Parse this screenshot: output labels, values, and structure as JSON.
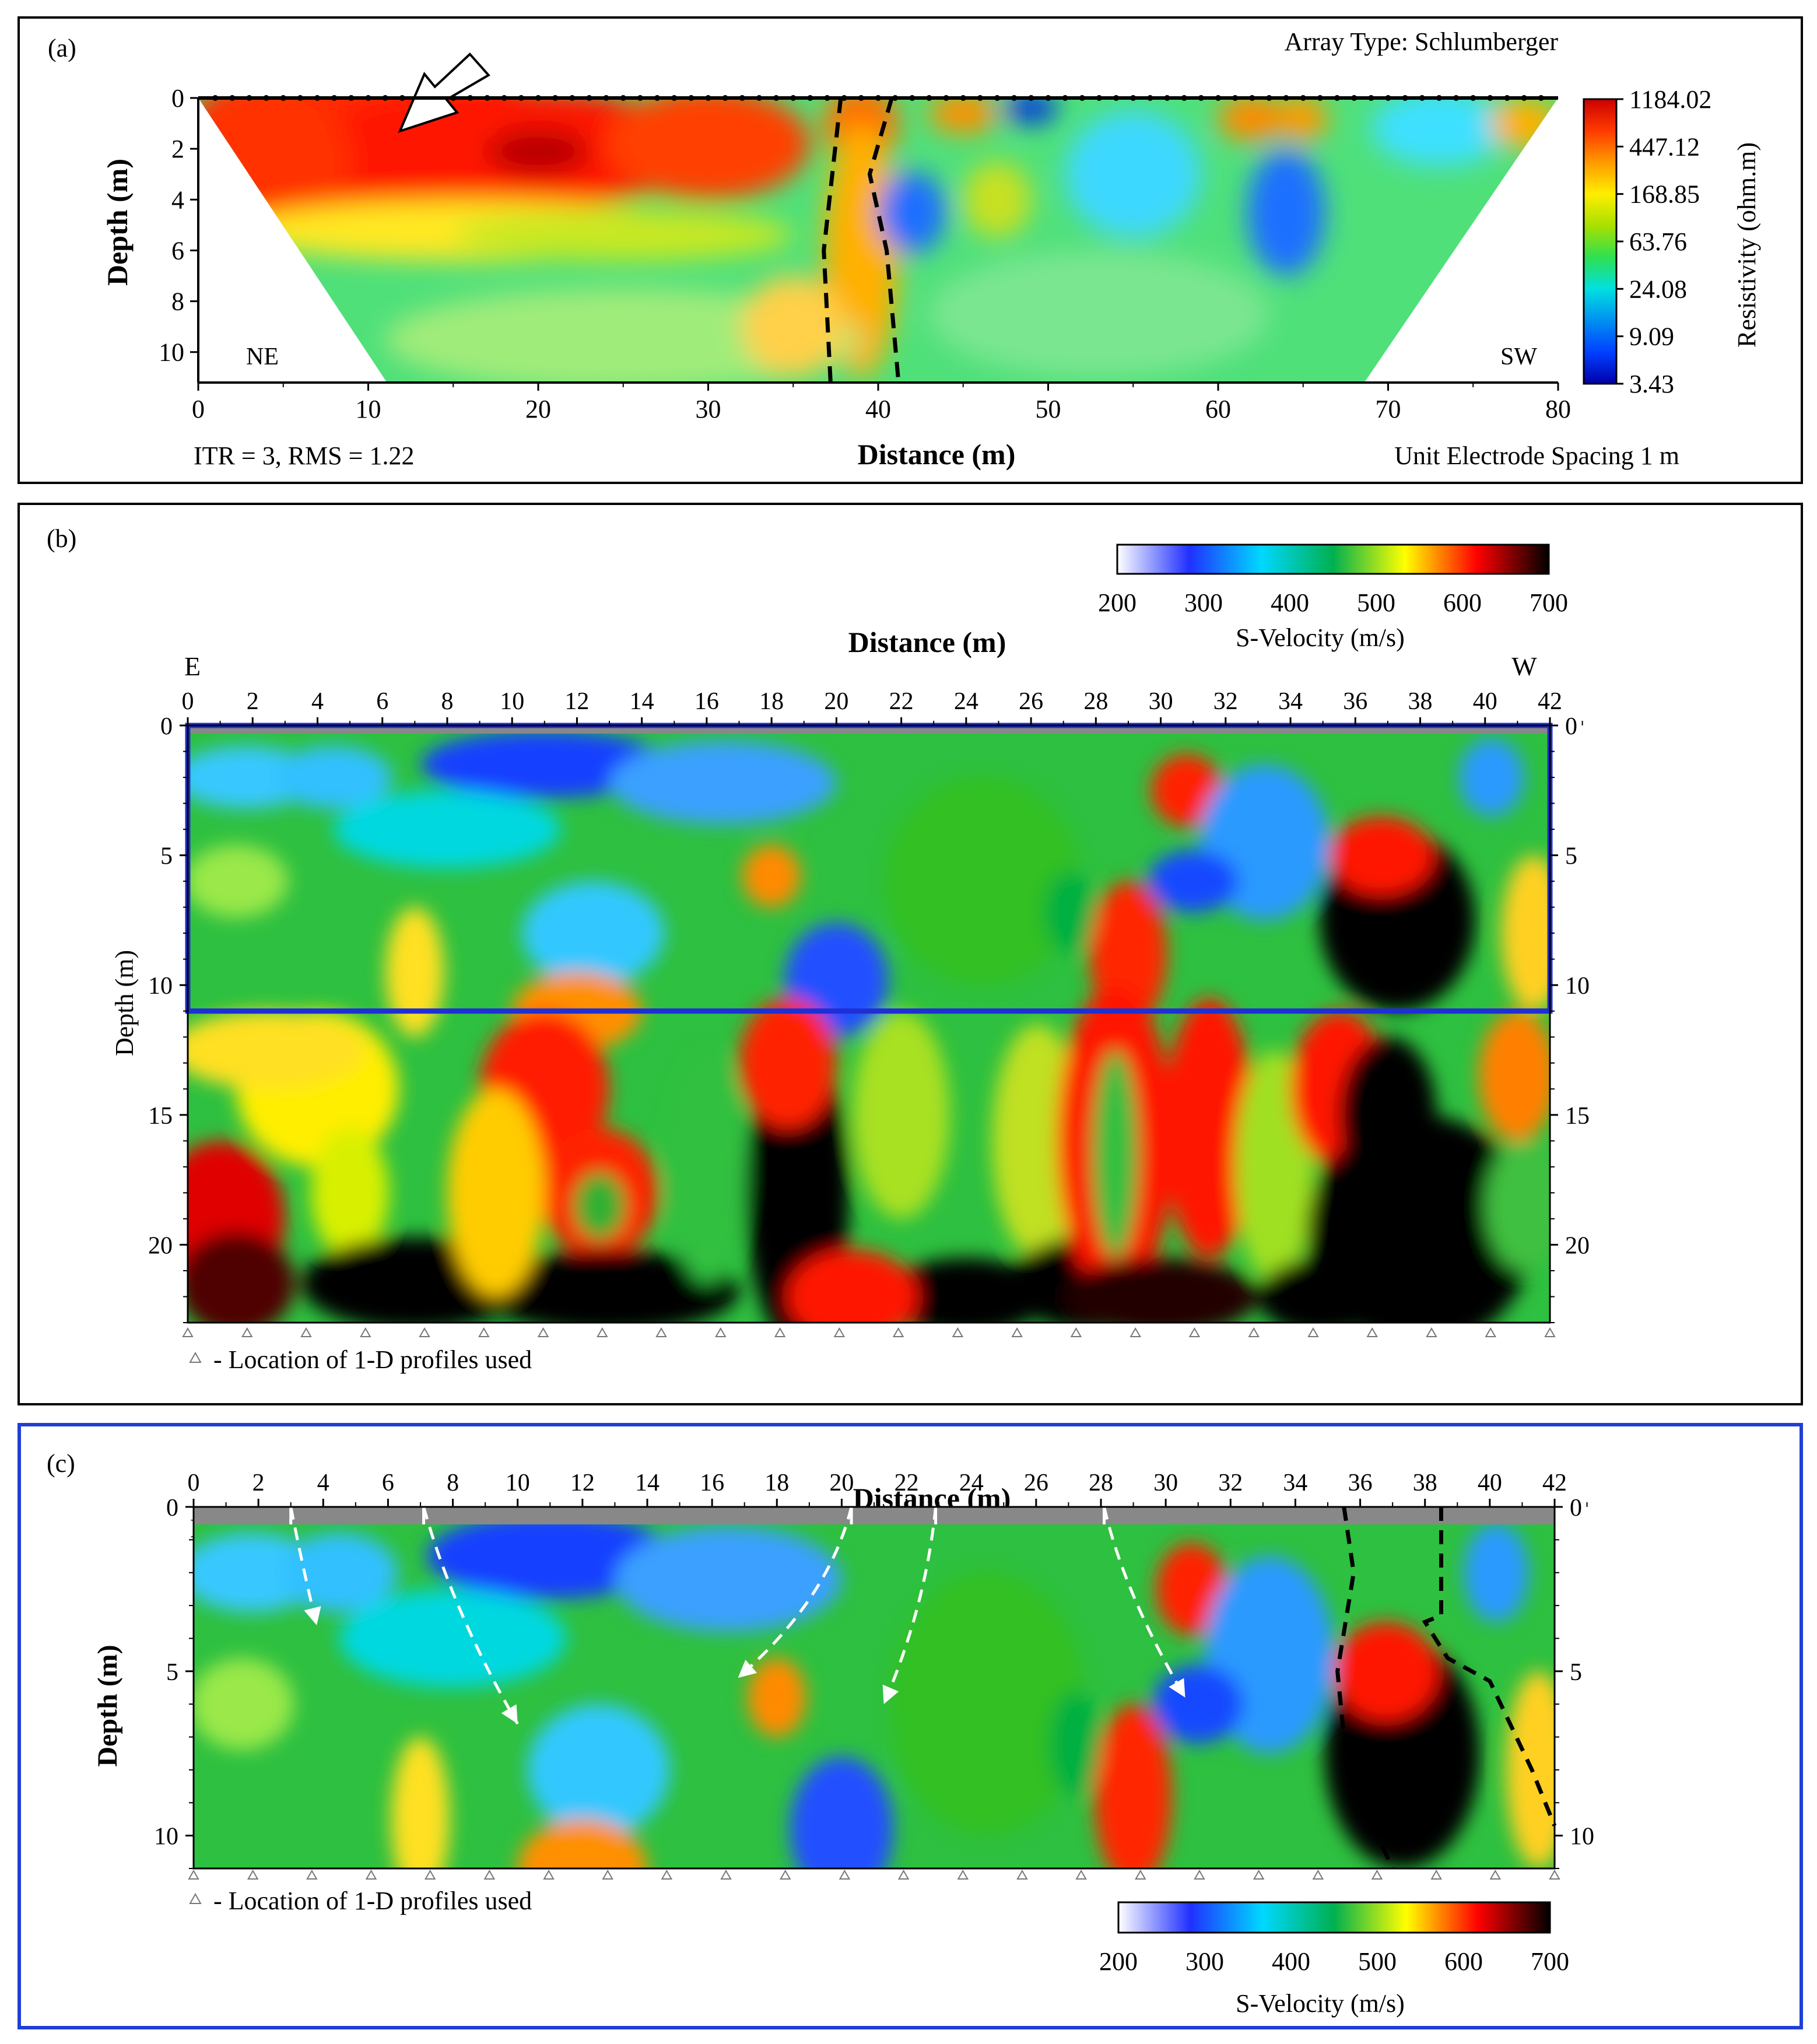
{
  "chart_data": [
    {
      "id": "a",
      "type": "heatmap",
      "panel_label": "(a)",
      "title": "Array Type: Schlumberger",
      "xlabel": "Distance (m)",
      "ylabel": "Depth (m)",
      "xlim": [
        0,
        80
      ],
      "ylim": [
        0,
        11.2
      ],
      "xticks": [
        "0",
        "10",
        "20",
        "30",
        "40",
        "50",
        "60",
        "70",
        "80"
      ],
      "yticks": [
        "0",
        "2",
        "4",
        "6",
        "8",
        "10"
      ],
      "left_label": "NE",
      "right_label": "SW",
      "bottom_left_note": "ITR = 3, RMS = 1.22",
      "bottom_right_note": "Unit Electrode Spacing 1 m",
      "colorbar": {
        "label": "Resistivity (ohm.m)",
        "ticks": [
          "1184.02",
          "447.12",
          "168.85",
          "63.76",
          "24.08",
          "9.09",
          "3.43"
        ],
        "colors": [
          "#cc0000",
          "#ff3a00",
          "#ff9a00",
          "#ffee00",
          "#a8e000",
          "#2ee050",
          "#00e0e0",
          "#0090f0",
          "#0040ff",
          "#0000aa"
        ]
      },
      "features": [
        {
          "label": "high-resistivity layer",
          "x_range": [
            0,
            35
          ],
          "depth_range": [
            0,
            5
          ],
          "value_class": "high"
        },
        {
          "label": "vertical resistive zone",
          "x_range": [
            37,
            41
          ],
          "depth_range": [
            0,
            11.2
          ],
          "value_class": "medium-high"
        },
        {
          "label": "low-resistivity pocket",
          "x": 42,
          "depth": 4.5,
          "value_class": "low"
        },
        {
          "label": "low-resistivity pocket",
          "x": 64,
          "depth": 4.5,
          "value_class": "low"
        }
      ],
      "dashed_boundaries": [
        {
          "points": [
            [
              37.8,
              0
            ],
            [
              37.3,
              3
            ],
            [
              36.8,
              6
            ],
            [
              37.2,
              11.2
            ]
          ]
        },
        {
          "points": [
            [
              40.8,
              0
            ],
            [
              39.5,
              3
            ],
            [
              40.5,
              6
            ],
            [
              41.2,
              11.2
            ]
          ]
        }
      ],
      "arrow_marker": {
        "x": 12,
        "depth": 0.8
      }
    },
    {
      "id": "b",
      "type": "heatmap",
      "panel_label": "(b)",
      "xlabel": "Distance (m)",
      "ylabel": "Depth (m)",
      "xlim": [
        0,
        42
      ],
      "ylim": [
        0,
        23
      ],
      "xticks": [
        "0",
        "2",
        "4",
        "6",
        "8",
        "10",
        "12",
        "14",
        "16",
        "18",
        "20",
        "22",
        "24",
        "26",
        "28",
        "30",
        "32",
        "34",
        "36",
        "38",
        "40",
        "42"
      ],
      "yticks": [
        "0",
        "5",
        "10",
        "15",
        "20"
      ],
      "left_label": "E",
      "right_label": "W",
      "highlight_box": {
        "x_range": [
          0,
          42
        ],
        "depth_range": [
          0,
          11
        ]
      },
      "legend_note": "- Location of 1-D profiles used",
      "profile_locations": [
        0,
        1.83,
        3.65,
        5.48,
        7.3,
        9.13,
        10.96,
        12.78,
        14.6,
        16.43,
        18.26,
        20.09,
        21.91,
        23.74,
        25.57,
        27.39,
        29.22,
        31.04,
        32.87,
        34.7,
        36.52,
        38.35,
        40.17,
        42
      ],
      "colorbar": {
        "label": "S-Velocity (m/s)",
        "ticks": [
          "200",
          "300",
          "400",
          "500",
          "600",
          "700"
        ],
        "range": [
          200,
          700
        ],
        "colors": [
          "#ffffff",
          "#2030ff",
          "#00d8ff",
          "#00b050",
          "#ffff00",
          "#ff0000",
          "#000000"
        ]
      }
    },
    {
      "id": "c",
      "type": "heatmap",
      "panel_label": "(c)",
      "xlabel": "Distance (m)",
      "ylabel": "Depth (m)",
      "xlim": [
        0,
        42
      ],
      "ylim": [
        0,
        11
      ],
      "xticks": [
        "0",
        "2",
        "4",
        "6",
        "8",
        "10",
        "12",
        "14",
        "16",
        "18",
        "20",
        "22",
        "24",
        "26",
        "28",
        "30",
        "32",
        "34",
        "36",
        "38",
        "40",
        "42"
      ],
      "yticks": [
        "0",
        "5",
        "10"
      ],
      "left_label": "E",
      "right_label": "W",
      "legend_note": "- Location of 1-D profiles used",
      "colorbar": {
        "label": "S-Velocity (m/s)",
        "ticks": [
          "200",
          "300",
          "400",
          "500",
          "600",
          "700"
        ],
        "range": [
          200,
          700
        ]
      },
      "white_dashed_arrows": [
        {
          "points": [
            [
              3.0,
              0
            ],
            [
              3.4,
              2.0
            ],
            [
              3.8,
              3.6
            ]
          ]
        },
        {
          "points": [
            [
              7.1,
              0
            ],
            [
              8.0,
              3.2
            ],
            [
              10.0,
              6.6
            ]
          ]
        },
        {
          "points": [
            [
              20.3,
              0
            ],
            [
              19.6,
              2.8
            ],
            [
              16.8,
              5.2
            ]
          ]
        },
        {
          "points": [
            [
              22.9,
              0
            ],
            [
              22.6,
              3.0
            ],
            [
              21.3,
              6.0
            ]
          ]
        },
        {
          "points": [
            [
              28.1,
              0
            ],
            [
              28.7,
              2.6
            ],
            [
              30.6,
              5.8
            ]
          ]
        }
      ],
      "black_dashed_boundaries": [
        {
          "points": [
            [
              35.5,
              0
            ],
            [
              35.8,
              2.0
            ],
            [
              35.3,
              5.0
            ],
            [
              35.6,
              8.0
            ],
            [
              37.0,
              11.0
            ]
          ]
        },
        {
          "points": [
            [
              38.5,
              0
            ],
            [
              38.5,
              3.3
            ],
            [
              38.0,
              3.5
            ],
            [
              38.7,
              4.6
            ],
            [
              40.0,
              5.3
            ],
            [
              41.3,
              8.0
            ],
            [
              42.0,
              9.7
            ]
          ]
        }
      ]
    }
  ]
}
